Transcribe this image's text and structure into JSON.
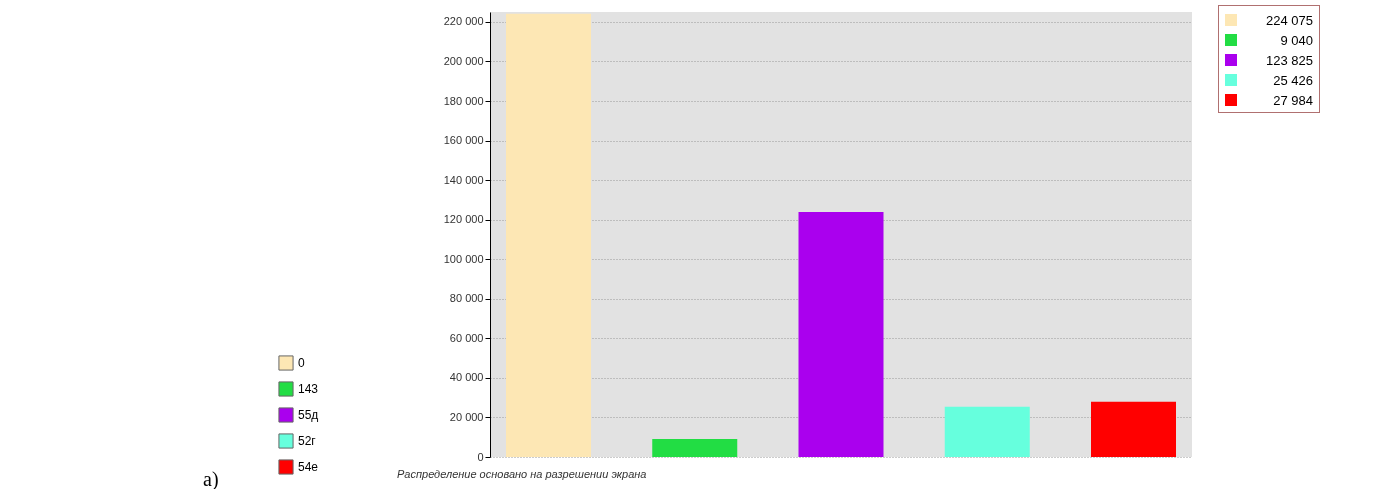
{
  "chart_data": {
    "type": "bar",
    "categories": [
      null,
      null,
      null,
      null,
      null
    ],
    "series": [
      {
        "name": "0",
        "color": "#fde7b4",
        "values": [
          224075,
          null,
          null,
          null,
          null
        ]
      },
      {
        "name": "143",
        "color": "#22dd44",
        "values": [
          null,
          9040,
          null,
          null,
          null
        ]
      },
      {
        "name": "55д",
        "color": "#aa00ee",
        "values": [
          null,
          null,
          123825,
          null,
          null
        ]
      },
      {
        "name": "52г",
        "color": "#66ffdd",
        "values": [
          null,
          null,
          null,
          25426,
          null
        ]
      },
      {
        "name": "54е",
        "color": "#ff0000",
        "values": [
          null,
          null,
          null,
          null,
          27984
        ]
      }
    ],
    "value_labels": [
      "224 075",
      "9 040",
      "123 825",
      "25 426",
      "27 984"
    ],
    "ylim": [
      0,
      225000
    ],
    "yticks": [
      0,
      {
        "value": 20000,
        "label": "20 000"
      },
      {
        "value": 40000,
        "label": "40 000"
      },
      {
        "value": 60000,
        "label": "60 000"
      },
      {
        "value": 80000,
        "label": "80 000"
      },
      {
        "value": 100000,
        "label": "100 000"
      },
      {
        "value": 120000,
        "label": "120 000"
      },
      {
        "value": 140000,
        "label": "140 000"
      },
      {
        "value": 160000,
        "label": "160 000"
      },
      {
        "value": 180000,
        "label": "180 000"
      },
      {
        "value": 200000,
        "label": "200 000"
      },
      {
        "value": 220000,
        "label": "220 000"
      }
    ],
    "grid": "y",
    "legend": "bottom left",
    "tick_labels": "y",
    "annotations": [
      "Распределение основано на разрешении экрана",
      "a)"
    ]
  }
}
